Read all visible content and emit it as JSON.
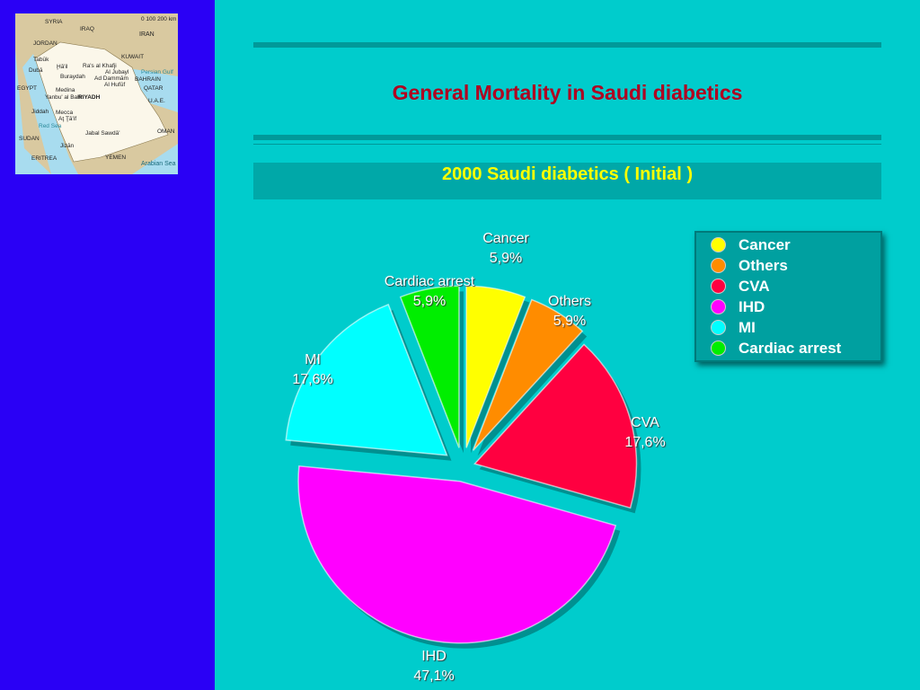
{
  "title": "General Mortality in Saudi diabetics",
  "subtitle": "2000 Saudi diabetics ( Initial )",
  "map": {
    "labels": [
      "IRAQ",
      "IRAN",
      "Tabūk",
      "Ḩā'il",
      "Ra's al Khafji",
      "Al Jubayl",
      "Ad Dammām",
      "Al Hufūf",
      "Dubā",
      "Buraydah",
      "Medina",
      "RIYADH",
      "Yanbu' al Bahr",
      "Jiddah",
      "Mecca",
      "Aţ Ţā'if",
      "Red Sea",
      "SUDAN",
      "Jizān",
      "YEMEN",
      "OMAN",
      "Arabian Sea",
      "Persian Gulf",
      "QATAR",
      "U.A.E.",
      "KUWAIT",
      "BAHRAIN",
      "Jabal Sawdā'",
      "ERITREA",
      "EGYPT",
      "SYRIA",
      "JORDAN"
    ],
    "scale": "0   100 200 km"
  },
  "chart_data": {
    "type": "pie",
    "title": "",
    "slices": [
      {
        "name": "Cancer",
        "value": 5.9,
        "label": "5,9%",
        "color": "#ffff00"
      },
      {
        "name": "Others",
        "value": 5.9,
        "label": "5,9%",
        "color": "#ff8c00"
      },
      {
        "name": "CVA",
        "value": 17.6,
        "label": "17,6%",
        "color": "#ff0040"
      },
      {
        "name": "IHD",
        "value": 47.1,
        "label": "47,1%",
        "color": "#ff00ff"
      },
      {
        "name": "MI",
        "value": 17.6,
        "label": "17,6%",
        "color": "#00ffff"
      },
      {
        "name": "Cardiac arrest",
        "value": 5.9,
        "label": "5,9%",
        "color": "#00ee00"
      }
    ],
    "exploded": true,
    "legend_placement": "right"
  }
}
